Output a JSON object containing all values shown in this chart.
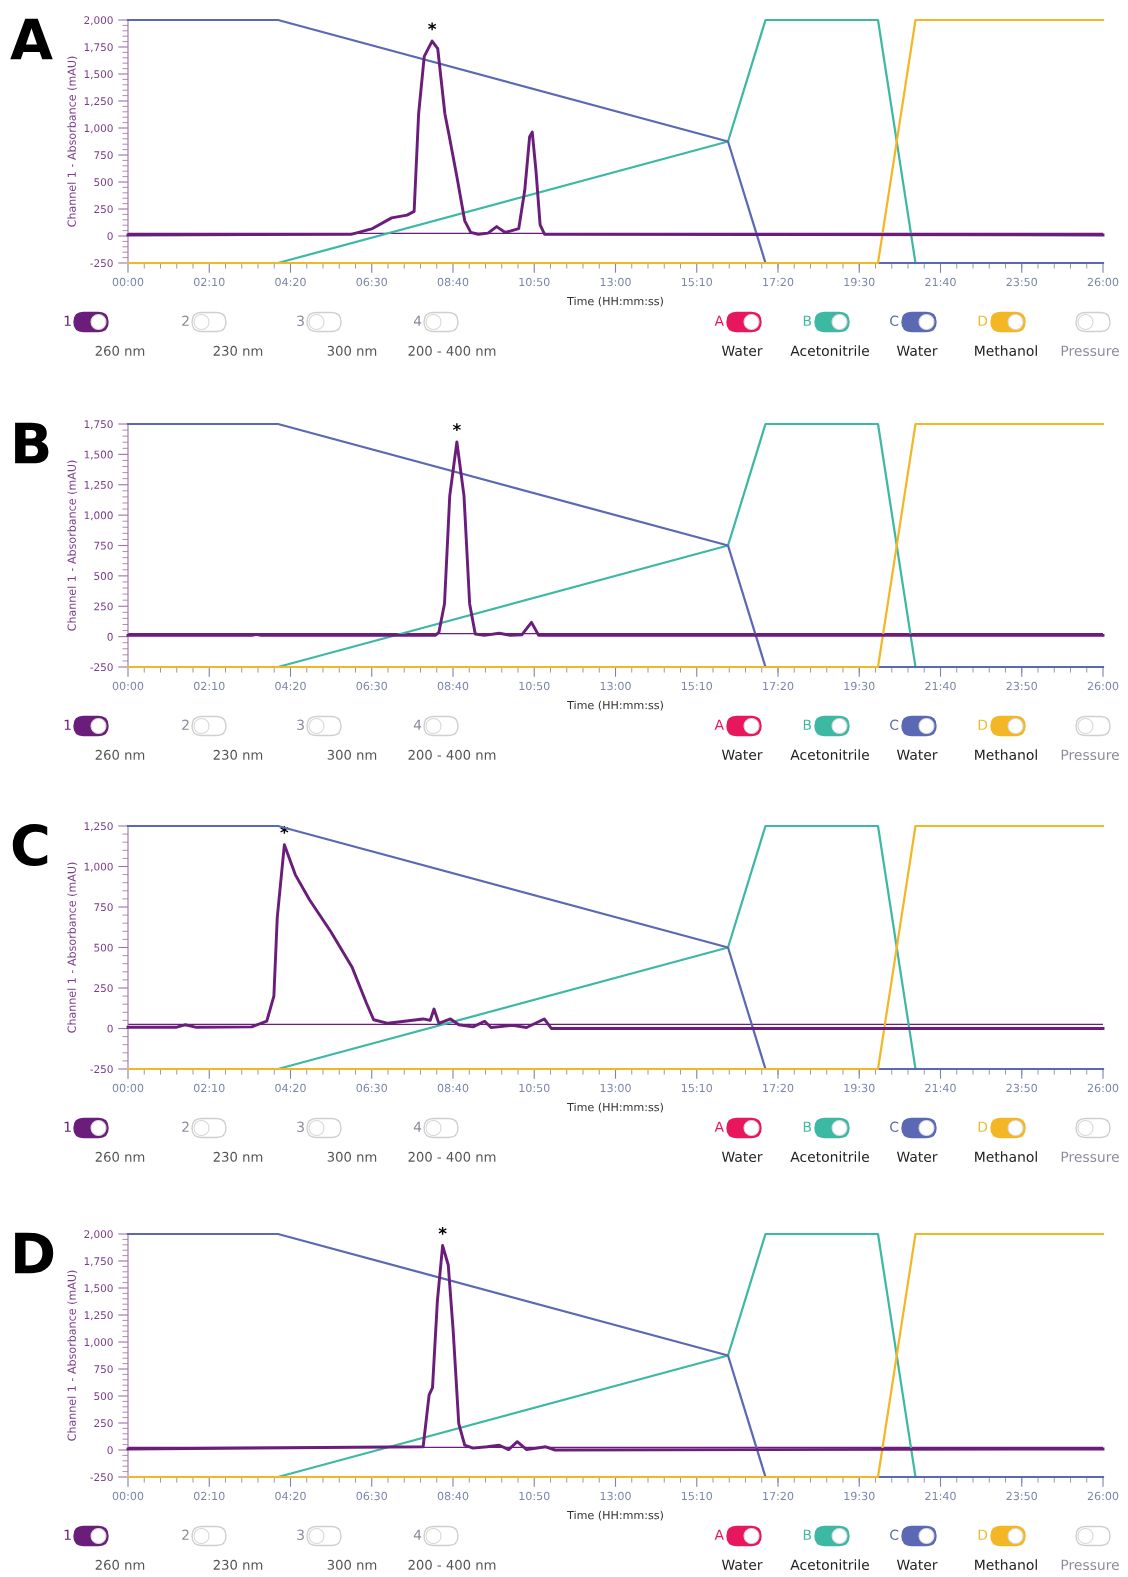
{
  "chart_data": [
    {
      "type": "line",
      "title": "A",
      "xlabel": "Time (HH:mm:ss)",
      "ylabel": "Channel 1 - Absorbance (mAU)",
      "xlim": [
        0,
        26
      ],
      "ylim": [
        -250,
        2000
      ],
      "xticks": [
        {
          "value": 0,
          "label": "00:00"
        },
        {
          "value": 2.1667,
          "label": "02:10"
        },
        {
          "value": 4.3333,
          "label": "04:20"
        },
        {
          "value": 6.5,
          "label": "06:30"
        },
        {
          "value": 8.6667,
          "label": "08:40"
        },
        {
          "value": 10.8333,
          "label": "10:50"
        },
        {
          "value": 13,
          "label": "13:00"
        },
        {
          "value": 15.1667,
          "label": "15:10"
        },
        {
          "value": 17.3333,
          "label": "17:20"
        },
        {
          "value": 19.5,
          "label": "19:30"
        },
        {
          "value": 21.6667,
          "label": "21:40"
        },
        {
          "value": 23.8333,
          "label": "23:50"
        },
        {
          "value": 26,
          "label": "26:00"
        }
      ],
      "yticks": [
        -250,
        0,
        250,
        500,
        750,
        {
          "value": 1000,
          "label": "1,000"
        },
        {
          "value": 1250,
          "label": "1,250"
        },
        {
          "value": 1500,
          "label": "1,500"
        },
        {
          "value": 1750,
          "label": "1,750"
        },
        {
          "value": 2000,
          "label": "2,000"
        }
      ],
      "legend": "bottom",
      "series": [
        {
          "name": "Acetonitrile",
          "color": "#3db8a3",
          "x": [
            4,
            16,
            17,
            20,
            21
          ],
          "values": [
            -250,
            875,
            2000,
            2000,
            -250
          ]
        },
        {
          "name": "Water",
          "color": "#5b68b4",
          "x": [
            0,
            4,
            16,
            17,
            26
          ],
          "values": [
            2000,
            2000,
            875,
            -250,
            -250
          ]
        },
        {
          "name": "Methanol",
          "color": "#f3b725",
          "x": [
            0,
            20,
            21,
            26
          ],
          "values": [
            -250,
            -250,
            2000,
            2000
          ]
        },
        {
          "color": "#6a1d7a",
          "x": [
            0,
            5.95,
            6.52,
            7.03,
            7.44,
            7.63,
            7.75,
            7.9,
            8.11,
            8.26,
            8.45,
            8.57,
            8.78,
            8.98,
            9.14,
            9.34,
            9.6,
            9.83,
            10.06,
            10.42,
            10.58,
            10.71,
            10.78,
            10.88,
            10.99,
            11.11,
            26
          ],
          "values": [
            10,
            15,
            69,
            168,
            193,
            228,
            1132,
            1663,
            1805,
            1734,
            1132,
            919,
            530,
            140,
            33,
            16,
            27,
            87,
            33,
            69,
            423,
            919,
            962,
            600,
            104,
            16,
            10
          ]
        }
      ],
      "ref_lines": [
        {
          "axis": "y",
          "value": 25,
          "color": "#6a1d7a"
        }
      ],
      "annotations": [
        "1",
        "2",
        "3",
        "4",
        "260 nm",
        "230 nm",
        "300 nm",
        "200 - 400 nm",
        "A",
        "Water",
        "B",
        "C",
        "D",
        "Pressure",
        {
          "text": "*",
          "x": 8.11,
          "y": 1805
        }
      ]
    },
    {
      "type": "line",
      "title": "B",
      "xlabel": "Time (HH:mm:ss)",
      "ylabel": "Channel 1 - Absorbance (mAU)",
      "xlim": [
        0,
        26
      ],
      "ylim": [
        -250,
        1750
      ],
      "xticks": [
        {
          "value": 0,
          "label": "00:00"
        },
        {
          "value": 2.1667,
          "label": "02:10"
        },
        {
          "value": 4.3333,
          "label": "04:20"
        },
        {
          "value": 6.5,
          "label": "06:30"
        },
        {
          "value": 8.6667,
          "label": "08:40"
        },
        {
          "value": 10.8333,
          "label": "10:50"
        },
        {
          "value": 13,
          "label": "13:00"
        },
        {
          "value": 15.1667,
          "label": "15:10"
        },
        {
          "value": 17.3333,
          "label": "17:20"
        },
        {
          "value": 19.5,
          "label": "19:30"
        },
        {
          "value": 21.6667,
          "label": "21:40"
        },
        {
          "value": 23.8333,
          "label": "23:50"
        },
        {
          "value": 26,
          "label": "26:00"
        }
      ],
      "yticks": [
        -250,
        0,
        250,
        500,
        750,
        {
          "value": 1000,
          "label": "1,000"
        },
        {
          "value": 1250,
          "label": "1,250"
        },
        {
          "value": 1500,
          "label": "1,500"
        },
        {
          "value": 1750,
          "label": "1,750"
        }
      ],
      "legend": "bottom",
      "series": [
        {
          "name": "Acetonitrile",
          "color": "#3db8a3",
          "x": [
            4,
            16,
            17,
            20,
            21
          ],
          "values": [
            -250,
            750,
            1750,
            1750,
            -250
          ]
        },
        {
          "name": "Water",
          "color": "#5b68b4",
          "x": [
            0,
            4,
            16,
            17,
            26
          ],
          "values": [
            1750,
            1750,
            750,
            -250,
            -250
          ]
        },
        {
          "name": "Methanol",
          "color": "#f3b725",
          "x": [
            0,
            20,
            21,
            26
          ],
          "values": [
            -250,
            -250,
            1750,
            1750
          ]
        },
        {
          "color": "#6a1d7a",
          "x": [
            0,
            3.3,
            3.42,
            3.55,
            8.2,
            8.29,
            8.44,
            8.58,
            8.77,
            8.96,
            9.11,
            9.26,
            9.5,
            9.9,
            10.2,
            10.5,
            10.76,
            10.95,
            26
          ],
          "values": [
            10,
            10,
            18,
            10,
            12,
            35,
            271,
            1158,
            1602,
            1158,
            271,
            22,
            10,
            28,
            10,
            15,
            117,
            12,
            10
          ]
        }
      ],
      "ref_lines": [
        {
          "axis": "y",
          "value": 25,
          "color": "#6a1d7a"
        }
      ],
      "annotations": [
        "1",
        "2",
        "3",
        "4",
        "260 nm",
        "230 nm",
        "300 nm",
        "200 - 400 nm",
        "A",
        "Water",
        "B",
        "C",
        "D",
        "Pressure",
        {
          "text": "*",
          "x": 8.77,
          "y": 1602
        }
      ]
    },
    {
      "type": "line",
      "title": "C",
      "xlabel": "Time (HH:mm:ss)",
      "ylabel": "Channel 1 - Absorbance (mAU)",
      "xlim": [
        0,
        26
      ],
      "ylim": [
        -250,
        1250
      ],
      "xticks": [
        {
          "value": 0,
          "label": "00:00"
        },
        {
          "value": 2.1667,
          "label": "02:10"
        },
        {
          "value": 4.3333,
          "label": "04:20"
        },
        {
          "value": 6.5,
          "label": "06:30"
        },
        {
          "value": 8.6667,
          "label": "08:40"
        },
        {
          "value": 10.8333,
          "label": "10:50"
        },
        {
          "value": 13,
          "label": "13:00"
        },
        {
          "value": 15.1667,
          "label": "15:10"
        },
        {
          "value": 17.3333,
          "label": "17:20"
        },
        {
          "value": 19.5,
          "label": "19:30"
        },
        {
          "value": 21.6667,
          "label": "21:40"
        },
        {
          "value": 23.8333,
          "label": "23:50"
        },
        {
          "value": 26,
          "label": "26:00"
        }
      ],
      "yticks": [
        -250,
        0,
        250,
        500,
        750,
        {
          "value": 1000,
          "label": "1,000"
        },
        {
          "value": 1250,
          "label": "1,250"
        }
      ],
      "legend": "bottom",
      "series": [
        {
          "name": "Acetonitrile",
          "color": "#3db8a3",
          "x": [
            4,
            16,
            17,
            20,
            21
          ],
          "values": [
            -250,
            500,
            1250,
            1250,
            -250
          ]
        },
        {
          "name": "Water",
          "color": "#5b68b4",
          "x": [
            0,
            4,
            16,
            17,
            26
          ],
          "values": [
            1250,
            1250,
            500,
            -250,
            -250
          ]
        },
        {
          "name": "Methanol",
          "color": "#f3b725",
          "x": [
            0,
            20,
            21,
            26
          ],
          "values": [
            -250,
            -250,
            1250,
            1250
          ]
        },
        {
          "color": "#6a1d7a",
          "x": [
            0,
            1.3,
            1.52,
            1.8,
            3.3,
            3.7,
            3.89,
            3.98,
            4.17,
            4.46,
            4.84,
            5.41,
            5.98,
            6.36,
            6.55,
            6.93,
            7.87,
            8.06,
            8.16,
            8.29,
            8.6,
            8.82,
            9.2,
            9.51,
            9.68,
            10.25,
            10.63,
            11.1,
            11.29,
            26
          ],
          "values": [
            8,
            8,
            23,
            8,
            10,
            45,
            200,
            685,
            1135,
            950,
            795,
            597,
            376,
            156,
            54,
            32,
            59,
            50,
            120,
            32,
            59,
            23,
            10,
            45,
            6,
            19,
            6,
            59,
            0,
            0
          ]
        }
      ],
      "ref_lines": [
        {
          "axis": "y",
          "value": 25,
          "color": "#6a1d7a"
        }
      ],
      "annotations": [
        "1",
        "2",
        "3",
        "4",
        "260 nm",
        "230 nm",
        "300 nm",
        "200 - 400 nm",
        "A",
        "Water",
        "B",
        "C",
        "D",
        "Pressure",
        {
          "text": "*",
          "x": 4.17,
          "y": 1135
        }
      ]
    },
    {
      "type": "line",
      "title": "D",
      "xlabel": "Time (HH:mm:ss)",
      "ylabel": "Channel 1 - Absorbance (mAU)",
      "xlim": [
        0,
        26
      ],
      "ylim": [
        -250,
        2000
      ],
      "xticks": [
        {
          "value": 0,
          "label": "00:00"
        },
        {
          "value": 2.1667,
          "label": "02:10"
        },
        {
          "value": 4.3333,
          "label": "04:20"
        },
        {
          "value": 6.5,
          "label": "06:30"
        },
        {
          "value": 8.6667,
          "label": "08:40"
        },
        {
          "value": 10.8333,
          "label": "10:50"
        },
        {
          "value": 13,
          "label": "13:00"
        },
        {
          "value": 15.1667,
          "label": "15:10"
        },
        {
          "value": 17.3333,
          "label": "17:20"
        },
        {
          "value": 19.5,
          "label": "19:30"
        },
        {
          "value": 21.6667,
          "label": "21:40"
        },
        {
          "value": 23.8333,
          "label": "23:50"
        },
        {
          "value": 26,
          "label": "26:00"
        }
      ],
      "yticks": [
        -250,
        0,
        250,
        500,
        750,
        {
          "value": 1000,
          "label": "1,000"
        },
        {
          "value": 1250,
          "label": "1,250"
        },
        {
          "value": 1500,
          "label": "1,500"
        },
        {
          "value": 1750,
          "label": "1,750"
        },
        {
          "value": 2000,
          "label": "2,000"
        }
      ],
      "legend": "bottom",
      "series": [
        {
          "name": "Acetonitrile",
          "color": "#3db8a3",
          "x": [
            4,
            16,
            17,
            20,
            21
          ],
          "values": [
            -250,
            875,
            2000,
            2000,
            -250
          ]
        },
        {
          "name": "Water",
          "color": "#5b68b4",
          "x": [
            0,
            4,
            16,
            17,
            26
          ],
          "values": [
            2000,
            2000,
            875,
            -250,
            -250
          ]
        },
        {
          "name": "Methanol",
          "color": "#f3b725",
          "x": [
            0,
            20,
            21,
            26
          ],
          "values": [
            -250,
            -250,
            2000,
            2000
          ]
        },
        {
          "color": "#6a1d7a",
          "x": [
            0,
            7.87,
            8.03,
            8.12,
            8.25,
            8.39,
            8.54,
            8.67,
            8.82,
            8.98,
            9.2,
            9.58,
            9.9,
            10.15,
            10.38,
            10.63,
            11.14,
            11.39,
            26
          ],
          "values": [
            10,
            30,
            511,
            578,
            1379,
            1893,
            1713,
            1112,
            244,
            44,
            17,
            30,
            44,
            4,
            77,
            4,
            30,
            0,
            10
          ]
        }
      ],
      "ref_lines": [
        {
          "axis": "y",
          "value": 25,
          "color": "#6a1d7a"
        }
      ],
      "annotations": [
        "1",
        "2",
        "3",
        "4",
        "260 nm",
        "230 nm",
        "300 nm",
        "200 - 400 nm",
        "A",
        "Water",
        "B",
        "C",
        "D",
        "Pressure",
        {
          "text": "*",
          "x": 8.39,
          "y": 1893
        }
      ]
    }
  ]
}
